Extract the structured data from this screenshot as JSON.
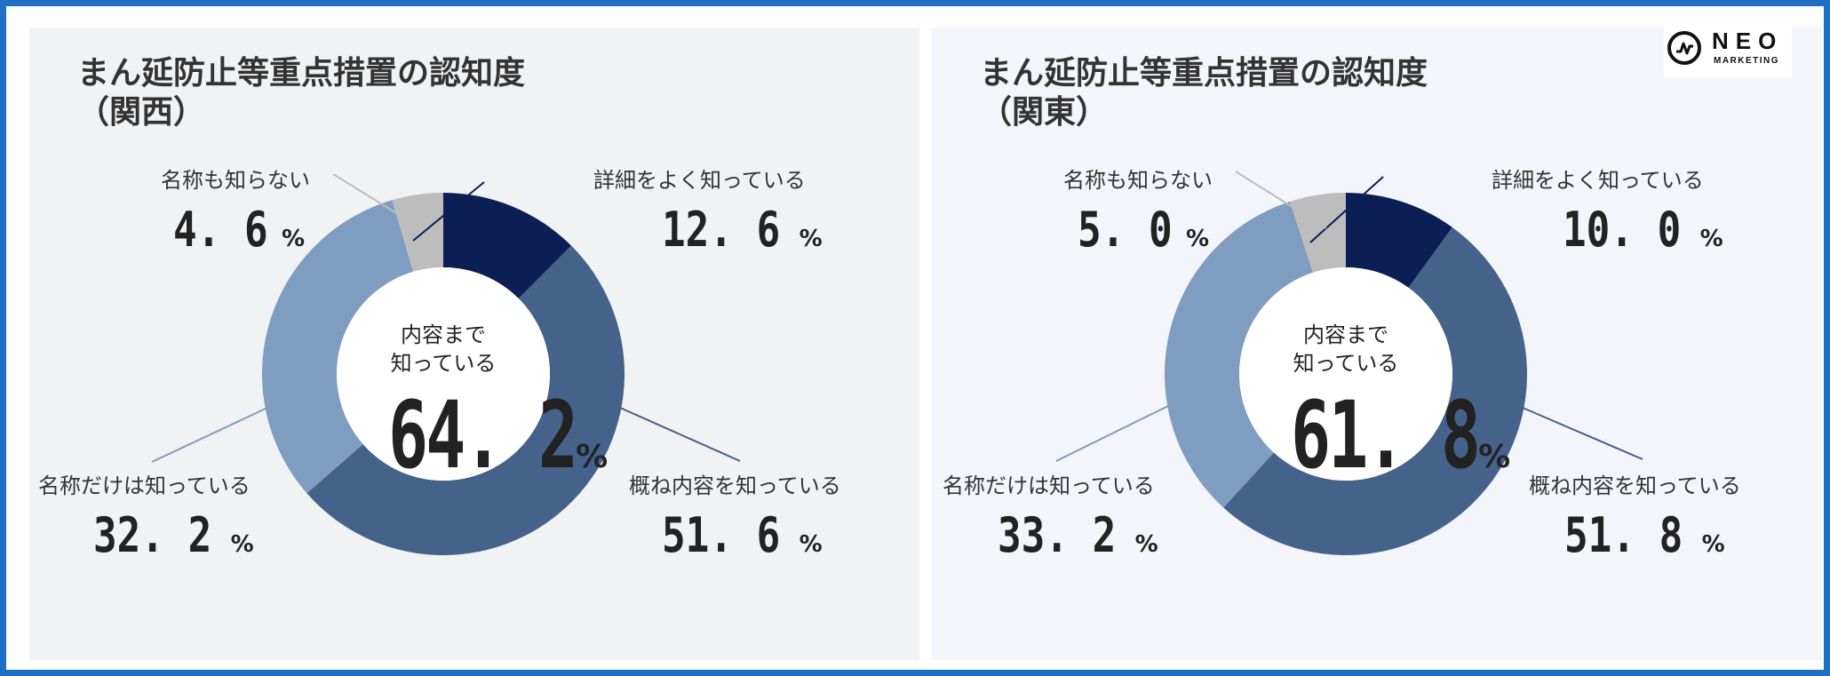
{
  "chart_data": [
    {
      "type": "pie",
      "title": "まん延防止等重点措置の認知度",
      "subtitle": "（関西）",
      "center_label": "内容まで知っている",
      "center_label_line1": "内容まで",
      "center_label_line2": "知っている",
      "center_value": "64. 2",
      "categories": [
        "詳細をよく知っている",
        "概ね内容を知っている",
        "名称だけは知っている",
        "名称も知らない"
      ],
      "values": [
        12.6,
        51.6,
        32.2,
        4.6
      ],
      "value_labels": [
        "12. 6",
        "51. 6",
        "32. 2",
        "4. 6"
      ],
      "unit": "%",
      "colors": [
        "#0b1f55",
        "#44628a",
        "#7f9cc1",
        "#bdbdbd"
      ]
    },
    {
      "type": "pie",
      "title": "まん延防止等重点措置の認知度",
      "subtitle": "（関東）",
      "center_label": "内容まで知っている",
      "center_label_line1": "内容まで",
      "center_label_line2": "知っている",
      "center_value": "61. 8",
      "categories": [
        "詳細をよく知っている",
        "概ね内容を知っている",
        "名称だけは知っている",
        "名称も知らない"
      ],
      "values": [
        10.0,
        51.8,
        33.2,
        5.0
      ],
      "value_labels": [
        "10. 0",
        "51. 8",
        "33. 2",
        "5. 0"
      ],
      "unit": "%",
      "colors": [
        "#0b1f55",
        "#44628a",
        "#7f9cc1",
        "#bdbdbd"
      ]
    }
  ],
  "logo": {
    "name": "NEO",
    "subtitle": "MARKETING",
    "icon": "neo-pulse-icon"
  }
}
